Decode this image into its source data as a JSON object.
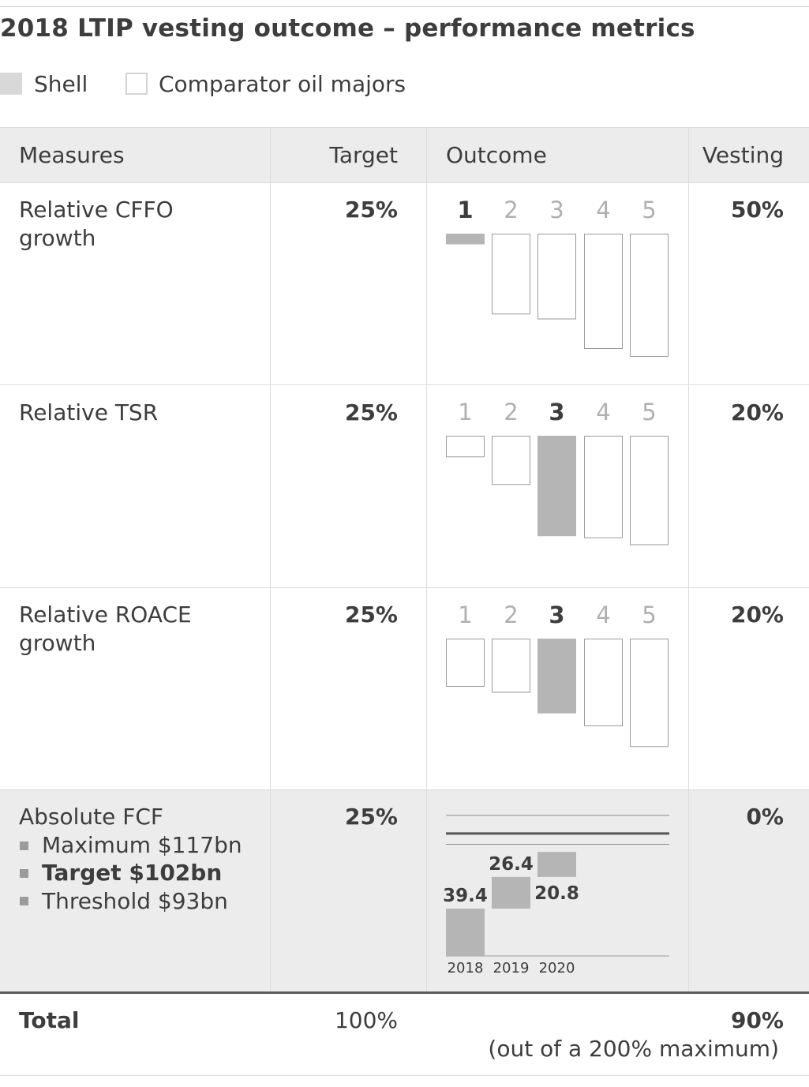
{
  "title": "2018 LTIP vesting outcome – performance metrics",
  "legend": {
    "shell": "Shell",
    "comparator": "Comparator oil majors"
  },
  "colors": {
    "shell": "#b5b5b5",
    "comparator": "#ffffff",
    "header_bg": "#ececec",
    "fcf_bg": "#ececec"
  },
  "table": {
    "headers": {
      "measures": "Measures",
      "target": "Target",
      "outcome": "Outcome",
      "vesting": "Vesting"
    },
    "rows": [
      {
        "measure_line1": "Relative CFFO",
        "measure_line2": "growth",
        "target": "25%",
        "vesting": "50%"
      },
      {
        "measure_line1": "Relative TSR",
        "measure_line2": "",
        "target": "25%",
        "vesting": "20%"
      },
      {
        "measure_line1": "Relative ROACE",
        "measure_line2": "growth",
        "target": "25%",
        "vesting": "20%"
      },
      {
        "measure_line1": "Absolute FCF",
        "target": "25%",
        "vesting": "0%",
        "bullets": [
          "Maximum $117bn",
          "Target $102bn",
          "Threshold $93bn"
        ]
      }
    ],
    "total": {
      "label": "Total",
      "target": "100%",
      "vesting": "90%",
      "note": "(out of a 200% maximum)"
    }
  },
  "chart_data": [
    {
      "type": "bar",
      "metric": "Relative CFFO growth",
      "categories": [
        "1",
        "2",
        "3",
        "4",
        "5"
      ],
      "values": [
        0.1,
        0.81,
        0.86,
        1.16,
        1.24
      ],
      "shell_rank": 1
    },
    {
      "type": "bar",
      "metric": "Relative TSR",
      "categories": [
        "1",
        "2",
        "3",
        "4",
        "5"
      ],
      "values": [
        0.21,
        0.49,
        1.01,
        1.03,
        1.1
      ],
      "shell_rank": 3
    },
    {
      "type": "bar",
      "metric": "Relative ROACE growth",
      "categories": [
        "1",
        "2",
        "3",
        "4",
        "5"
      ],
      "values": [
        0.48,
        0.54,
        0.75,
        0.88,
        1.09
      ],
      "shell_rank": 3
    },
    {
      "type": "bar",
      "metric": "Absolute FCF",
      "stacked": "waterfall",
      "categories": [
        "2018",
        "2019",
        "2020"
      ],
      "values": [
        39.4,
        26.4,
        20.8
      ],
      "unit": "$bn",
      "reference_lines": {
        "maximum": 117,
        "target": 102,
        "threshold": 93
      },
      "ylim": [
        0,
        117
      ]
    }
  ]
}
